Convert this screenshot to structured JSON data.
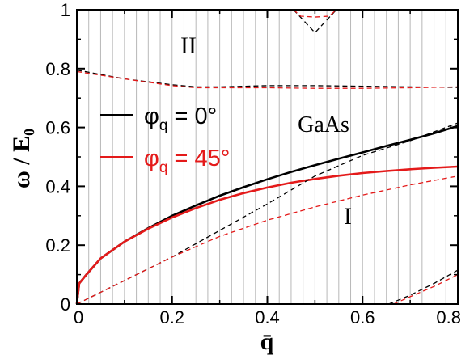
{
  "chart_data": {
    "type": "line",
    "title": "",
    "xlabel": "q̄",
    "ylabel": "ω / E₀",
    "xlim": [
      0,
      0.8
    ],
    "ylim": [
      0,
      1
    ],
    "xticks": [
      "0",
      "0.2",
      "0.4",
      "0.6",
      "0.8"
    ],
    "yticks": [
      "0",
      "0.2",
      "0.4",
      "0.6",
      "0.8",
      "1"
    ],
    "grid": "vertical lines every 0.025",
    "legend_position": "upper-left",
    "annotations": {
      "region_upper": "II",
      "region_lower": "I",
      "material": "GaAs"
    },
    "legend": [
      {
        "label": "φq = 0°",
        "phi": "φ",
        "sub": "q",
        "rest": " = 0°",
        "color": "#000000"
      },
      {
        "label": "φq = 45°",
        "phi": "φ",
        "sub": "q",
        "rest": " = 45°",
        "color": "#e41a1a"
      }
    ],
    "series": [
      {
        "name": "φq = 0°",
        "style": "solid",
        "color": "#000000",
        "x": [
          0,
          0.005,
          0.02,
          0.05,
          0.1,
          0.15,
          0.2,
          0.25,
          0.3,
          0.35,
          0.4,
          0.45,
          0.5,
          0.55,
          0.6,
          0.65,
          0.7,
          0.75,
          0.8
        ],
        "y": [
          0,
          0.07,
          0.1,
          0.155,
          0.212,
          0.258,
          0.3,
          0.335,
          0.368,
          0.397,
          0.424,
          0.449,
          0.472,
          0.494,
          0.515,
          0.537,
          0.558,
          0.58,
          0.605
        ]
      },
      {
        "name": "φq = 45°",
        "style": "solid",
        "color": "#e41a1a",
        "x": [
          0,
          0.005,
          0.02,
          0.05,
          0.1,
          0.15,
          0.2,
          0.25,
          0.3,
          0.35,
          0.4,
          0.45,
          0.5,
          0.55,
          0.6,
          0.65,
          0.7,
          0.75,
          0.8
        ],
        "y": [
          0,
          0.07,
          0.1,
          0.155,
          0.212,
          0.256,
          0.294,
          0.326,
          0.354,
          0.377,
          0.396,
          0.412,
          0.425,
          0.436,
          0.445,
          0.452,
          0.458,
          0.463,
          0.467
        ]
      },
      {
        "name": "",
        "style": "dashed",
        "color": "#000000",
        "x": [
          0,
          0.1,
          0.2,
          0.3,
          0.4,
          0.5,
          0.6,
          0.7,
          0.8
        ],
        "y": [
          0,
          0.08,
          0.16,
          0.25,
          0.34,
          0.435,
          0.505,
          0.555,
          0.615
        ]
      },
      {
        "name": "",
        "style": "dashed",
        "color": "#e41a1a",
        "x": [
          0,
          0.1,
          0.2,
          0.3,
          0.4,
          0.5,
          0.6,
          0.7,
          0.8
        ],
        "y": [
          0,
          0.08,
          0.16,
          0.23,
          0.285,
          0.33,
          0.37,
          0.405,
          0.435
        ]
      },
      {
        "name": "",
        "style": "dashed",
        "color": "#000000",
        "x": [
          0,
          0.1,
          0.2,
          0.25,
          0.3,
          0.4,
          0.5,
          0.6,
          0.7,
          0.8
        ],
        "y": [
          0.795,
          0.765,
          0.745,
          0.738,
          0.738,
          0.742,
          0.742,
          0.74,
          0.738,
          0.736
        ]
      },
      {
        "name": "",
        "style": "dashed",
        "color": "#e41a1a",
        "x": [
          0,
          0.1,
          0.2,
          0.25,
          0.3,
          0.4,
          0.5,
          0.6,
          0.7,
          0.8
        ],
        "y": [
          0.79,
          0.765,
          0.742,
          0.735,
          0.735,
          0.735,
          0.733,
          0.733,
          0.735,
          0.738
        ]
      },
      {
        "name": "",
        "style": "dashed",
        "color": "#000000",
        "x": [
          0.455,
          0.5,
          0.545
        ],
        "y": [
          1.0,
          0.922,
          1.0
        ]
      },
      {
        "name": "",
        "style": "dashed",
        "color": "#e41a1a",
        "x": [
          0.455,
          0.47,
          0.5,
          0.53,
          0.545
        ],
        "y": [
          1.0,
          0.978,
          0.975,
          0.978,
          1.0
        ]
      },
      {
        "name": "",
        "style": "dashed",
        "color": "#000000",
        "x": [
          0.655,
          0.7,
          0.75,
          0.8
        ],
        "y": [
          0,
          0.03,
          0.07,
          0.115
        ]
      },
      {
        "name": "",
        "style": "dashed",
        "color": "#e41a1a",
        "x": [
          0.665,
          0.7,
          0.75,
          0.8
        ],
        "y": [
          0,
          0.025,
          0.06,
          0.1
        ]
      }
    ]
  }
}
